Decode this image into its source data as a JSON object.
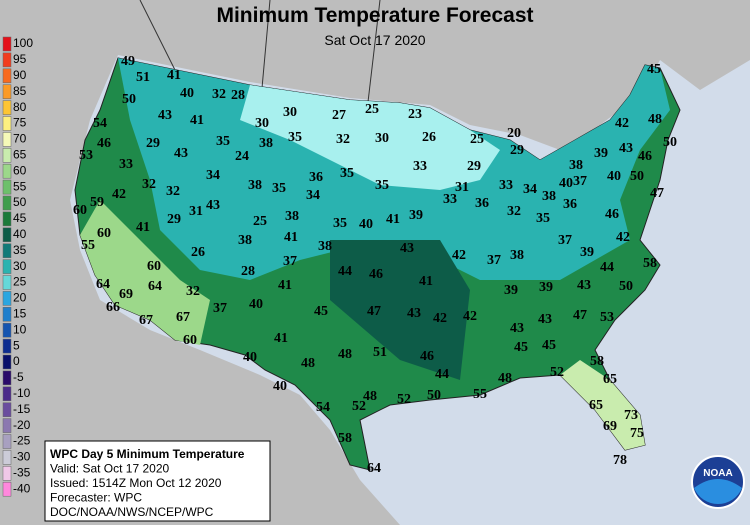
{
  "header": {
    "title": "Minimum Temperature Forecast",
    "subtitle": "Sat Oct 17 2020"
  },
  "legend": [
    {
      "label": 100,
      "color": "#e4111a"
    },
    {
      "label": 95,
      "color": "#f23c1e"
    },
    {
      "label": 90,
      "color": "#f86a20"
    },
    {
      "label": 85,
      "color": "#fb9a26"
    },
    {
      "label": 80,
      "color": "#fdc534"
    },
    {
      "label": 75,
      "color": "#fef080"
    },
    {
      "label": 70,
      "color": "#f5f9b8"
    },
    {
      "label": 65,
      "color": "#c9ecae"
    },
    {
      "label": 60,
      "color": "#9cd88a"
    },
    {
      "label": 55,
      "color": "#6dc06b"
    },
    {
      "label": 50,
      "color": "#3f9d4c"
    },
    {
      "label": 45,
      "color": "#1b7a3a"
    },
    {
      "label": 40,
      "color": "#0d5c48"
    },
    {
      "label": 35,
      "color": "#127a78"
    },
    {
      "label": 30,
      "color": "#2ab3b0"
    },
    {
      "label": 25,
      "color": "#65d8d9"
    },
    {
      "label": 20,
      "color": "#2aa6e0"
    },
    {
      "label": 15,
      "color": "#1f7fcc"
    },
    {
      "label": 10,
      "color": "#1555b0"
    },
    {
      "label": 5,
      "color": "#0d2d90"
    },
    {
      "label": 0,
      "color": "#08106a"
    },
    {
      "label": -5,
      "color": "#2a0a6a"
    },
    {
      "label": -10,
      "color": "#4b2a8a"
    },
    {
      "label": -15,
      "color": "#6a4d9e"
    },
    {
      "label": -20,
      "color": "#8b78b0"
    },
    {
      "label": -25,
      "color": "#a8a0c0"
    },
    {
      "label": -30,
      "color": "#ccccd8"
    },
    {
      "label": -35,
      "color": "#f0c8e8"
    },
    {
      "label": -40,
      "color": "#ff88dd"
    }
  ],
  "info": [
    "WPC Day 5 Minimum Temperature",
    "Valid: Sat Oct 17 2020",
    "Issued: 1514Z Mon Oct 12 2020",
    "Forecaster: WPC",
    "DOC/NOAA/NWS/NCEP/WPC"
  ],
  "logo": "NOAA",
  "stations": [
    49,
    51,
    41,
    40,
    32,
    28,
    50,
    43,
    41,
    30,
    30,
    27,
    25,
    23,
    54,
    46,
    29,
    43,
    35,
    38,
    35,
    32,
    30,
    26,
    25,
    20,
    45,
    42,
    48,
    50,
    24,
    53,
    33,
    34,
    38,
    35,
    36,
    35,
    35,
    33,
    29,
    29,
    38,
    39,
    43,
    46,
    32,
    32,
    42,
    34,
    31,
    33,
    34,
    38,
    40,
    37,
    40,
    50,
    47,
    60,
    59,
    29,
    31,
    43,
    33,
    36,
    32,
    35,
    36,
    46,
    25,
    38,
    35,
    40,
    41,
    39,
    41,
    60,
    42,
    55,
    26,
    38,
    41,
    38,
    43,
    42,
    37,
    38,
    37,
    39,
    58,
    60,
    28,
    37,
    44,
    46,
    44,
    64,
    69,
    64,
    41,
    41,
    39,
    39,
    43,
    50,
    66,
    32,
    37,
    40,
    45,
    47,
    43,
    42,
    42,
    47,
    53,
    67,
    67,
    43,
    43,
    41,
    45,
    45,
    60,
    48,
    48,
    51,
    46,
    58,
    40,
    44,
    55,
    48,
    52,
    65,
    40,
    48,
    52,
    50,
    65,
    73,
    54,
    52,
    69,
    75,
    58,
    78,
    64
  ]
}
